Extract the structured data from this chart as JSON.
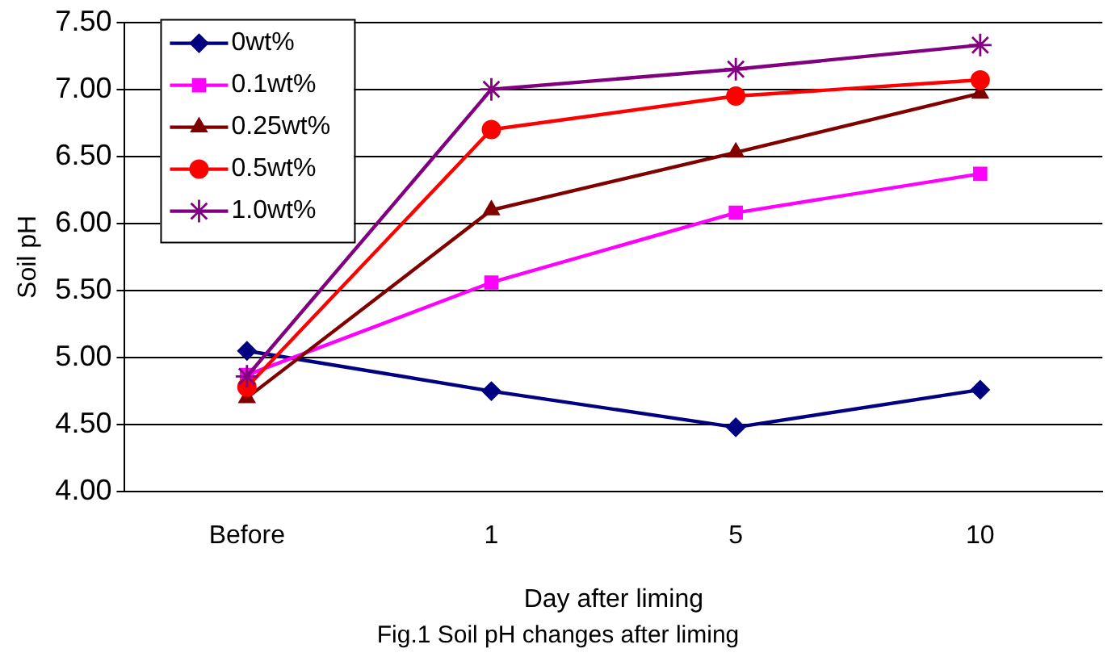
{
  "chart_data": {
    "type": "line",
    "xlabel": "Day after liming",
    "ylabel": "Soil pH",
    "categories": [
      "Before",
      "1",
      "5",
      "10"
    ],
    "series": [
      {
        "name": "0wt%",
        "color": "#000080",
        "marker": "diamond",
        "values": [
          5.05,
          4.75,
          4.48,
          4.76
        ]
      },
      {
        "name": "0.1wt%",
        "color": "#ff00ff",
        "marker": "square",
        "values": [
          4.87,
          5.56,
          6.08,
          6.37
        ]
      },
      {
        "name": "0.25wt%",
        "color": "#800000",
        "marker": "triangle",
        "values": [
          4.7,
          6.1,
          6.53,
          6.97
        ]
      },
      {
        "name": "0.5wt%",
        "color": "#ff0000",
        "marker": "circle",
        "values": [
          4.78,
          6.7,
          6.95,
          7.07
        ]
      },
      {
        "name": "1.0wt%",
        "color": "#800080",
        "marker": "cross",
        "values": [
          4.86,
          7.0,
          7.15,
          7.33
        ]
      }
    ],
    "ylim": [
      4,
      7.5
    ],
    "yticks": [
      {
        "value": 4,
        "label": "4.00"
      },
      {
        "value": 4.5,
        "label": "4.50"
      },
      {
        "value": 5,
        "label": "5.00"
      },
      {
        "value": 5.5,
        "label": "5.50"
      },
      {
        "value": 6,
        "label": "6.00"
      },
      {
        "value": 6.5,
        "label": "6.50"
      },
      {
        "value": 7,
        "label": "7.00"
      },
      {
        "value": 7.5,
        "label": "7.50"
      }
    ],
    "grid": "y",
    "legend": "top left",
    "line_style": "solid",
    "annotations": [
      "Fig.1 Soil pH changes after liming"
    ]
  }
}
